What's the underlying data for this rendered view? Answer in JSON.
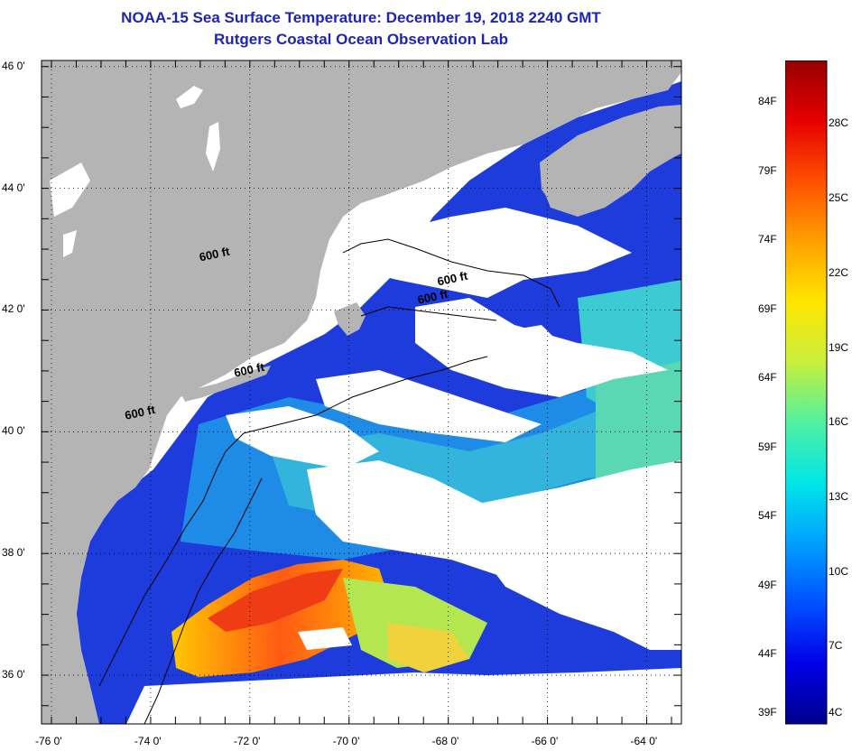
{
  "title": {
    "line1": "NOAA-15 Sea Surface Temperature:  December 19, 2018 2240 GMT",
    "line2": "Rutgers Coastal Ocean Observation Lab"
  },
  "map": {
    "lat_labels": [
      "46 0'",
      "44 0'",
      "42 0'",
      "40 0'",
      "38 0'",
      "36 0'"
    ],
    "lat_values": [
      46,
      44,
      42,
      40,
      38,
      36
    ],
    "lon_labels": [
      "-76 0'",
      "-74 0'",
      "-72 0'",
      "-70 0'",
      "-68 0'",
      "-66 0'",
      "-64 0'"
    ],
    "lon_values": [
      -76,
      -74,
      -72,
      -70,
      -68,
      -66,
      -64
    ],
    "lon_range": [
      -76.2,
      -63.3
    ],
    "lat_range": [
      35.2,
      46.1
    ],
    "contour_labels": [
      {
        "text": "600 ft",
        "lon": -73.0,
        "lat": 42.8
      },
      {
        "text": "600 ft",
        "lon": -68.2,
        "lat": 42.4
      },
      {
        "text": "600 ft",
        "lon": -68.6,
        "lat": 42.1
      },
      {
        "text": "600 ft",
        "lon": -72.3,
        "lat": 40.9
      },
      {
        "text": "600 ft",
        "lon": -74.5,
        "lat": 40.2
      }
    ],
    "colors": {
      "land": "#b4b4b4",
      "cloud": "#ffffff",
      "cold_water": "#1428dc",
      "warm_water": "#ff5a14"
    }
  },
  "colorbar": {
    "fahrenheit_labels": [
      "84F",
      "79F",
      "74F",
      "69F",
      "64F",
      "59F",
      "54F",
      "49F",
      "44F",
      "39F"
    ],
    "celsius_labels": [
      "28C",
      "25C",
      "22C",
      "19C",
      "16C",
      "13C",
      "10C",
      "7C",
      "4C"
    ],
    "range_f": [
      39,
      87
    ],
    "colors": [
      "#00008c",
      "#0000e6",
      "#0050ff",
      "#00a0ff",
      "#00e6e6",
      "#50f0a0",
      "#c8f03c",
      "#ffe600",
      "#ffa000",
      "#ff5000",
      "#e60000",
      "#960000"
    ]
  }
}
